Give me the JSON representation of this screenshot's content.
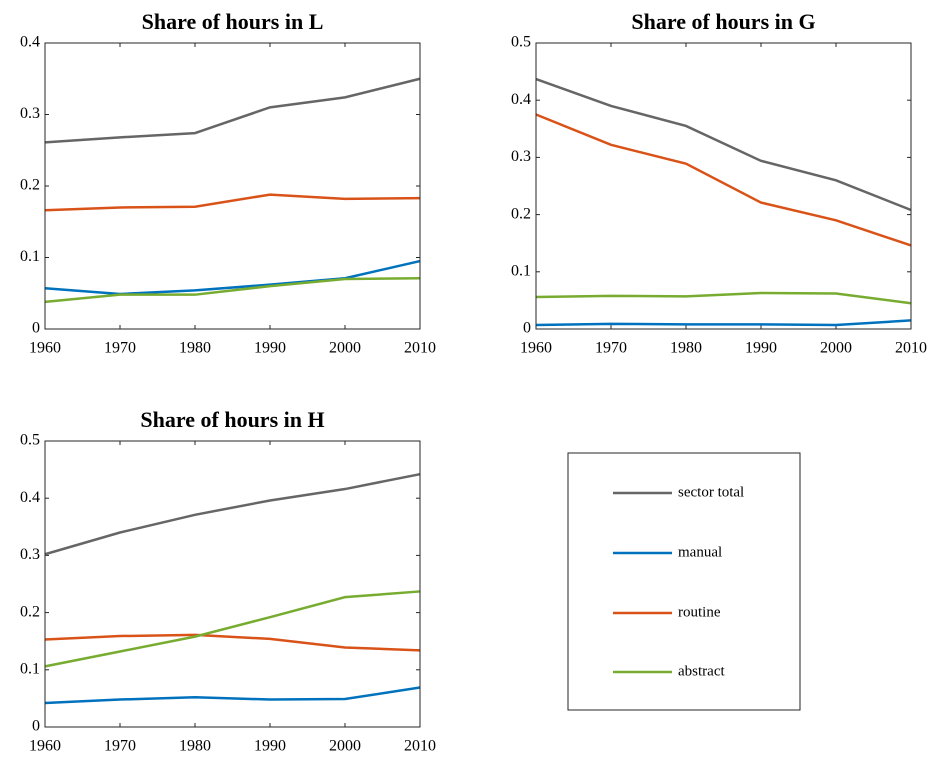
{
  "chart_data": [
    {
      "type": "line",
      "title": "Share of hours in L",
      "x": [
        1960,
        1970,
        1980,
        1990,
        2000,
        2010
      ],
      "xlim": [
        1960,
        2010
      ],
      "xticks": [
        1960,
        1970,
        1980,
        1990,
        2000,
        2010
      ],
      "ylim": [
        0,
        0.4
      ],
      "yticks": [
        0,
        0.1,
        0.2,
        0.3,
        0.4
      ],
      "series": [
        {
          "name": "sector total",
          "color": "#666666",
          "values": [
            0.261,
            0.268,
            0.274,
            0.31,
            0.324,
            0.35
          ]
        },
        {
          "name": "manual",
          "color": "#0072bd",
          "values": [
            0.057,
            0.049,
            0.054,
            0.062,
            0.071,
            0.095
          ]
        },
        {
          "name": "routine",
          "color": "#d95319",
          "values": [
            0.166,
            0.17,
            0.171,
            0.188,
            0.182,
            0.183
          ]
        },
        {
          "name": "abstract",
          "color": "#77ac30",
          "values": [
            0.038,
            0.048,
            0.048,
            0.06,
            0.07,
            0.071
          ]
        }
      ]
    },
    {
      "type": "line",
      "title": "Share of hours in G",
      "x": [
        1960,
        1970,
        1980,
        1990,
        2000,
        2010
      ],
      "xlim": [
        1960,
        2010
      ],
      "xticks": [
        1960,
        1970,
        1980,
        1990,
        2000,
        2010
      ],
      "ylim": [
        0,
        0.5
      ],
      "yticks": [
        0,
        0.1,
        0.2,
        0.3,
        0.4,
        0.5
      ],
      "series": [
        {
          "color": "#666666",
          "values": [
            0.437,
            0.39,
            0.355,
            0.294,
            0.26,
            0.208
          ]
        },
        {
          "color": "#0072bd",
          "values": [
            0.007,
            0.009,
            0.008,
            0.008,
            0.007,
            0.015
          ]
        },
        {
          "color": "#d95319",
          "values": [
            0.375,
            0.322,
            0.289,
            0.221,
            0.19,
            0.146
          ]
        },
        {
          "color": "#77ac30",
          "values": [
            0.056,
            0.058,
            0.057,
            0.063,
            0.062,
            0.045
          ]
        }
      ]
    },
    {
      "type": "line",
      "title": "Share of hours in H",
      "x": [
        1960,
        1970,
        1980,
        1990,
        2000,
        2010
      ],
      "xlim": [
        1960,
        2010
      ],
      "xticks": [
        1960,
        1970,
        1980,
        1990,
        2000,
        2010
      ],
      "ylim": [
        0,
        0.5
      ],
      "yticks": [
        0,
        0.1,
        0.2,
        0.3,
        0.4,
        0.5
      ],
      "series": [
        {
          "color": "#666666",
          "values": [
            0.302,
            0.34,
            0.371,
            0.396,
            0.416,
            0.442
          ]
        },
        {
          "color": "#0072bd",
          "values": [
            0.042,
            0.048,
            0.052,
            0.048,
            0.049,
            0.069
          ]
        },
        {
          "color": "#d95319",
          "values": [
            0.153,
            0.159,
            0.161,
            0.154,
            0.139,
            0.134
          ]
        },
        {
          "color": "#77ac30",
          "values": [
            0.106,
            0.132,
            0.158,
            0.192,
            0.227,
            0.237
          ]
        }
      ]
    }
  ]
}
